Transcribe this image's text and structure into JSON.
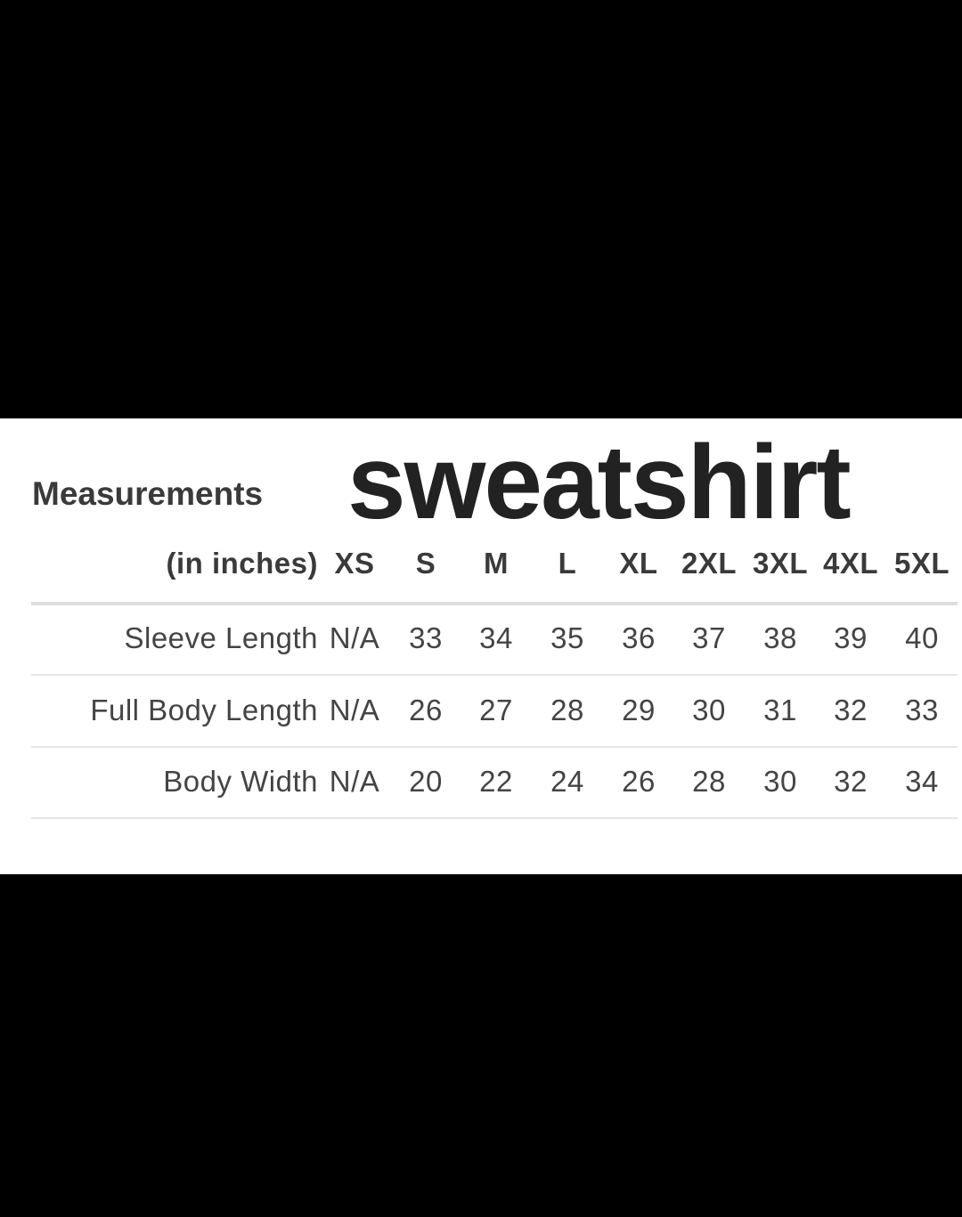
{
  "heading": "Measurements",
  "title": "sweatshirt",
  "table": {
    "unit_label": "(in inches)",
    "columns": [
      "XS",
      "S",
      "M",
      "L",
      "XL",
      "2XL",
      "3XL",
      "4XL",
      "5XL"
    ],
    "rows": [
      {
        "label": "Sleeve Length",
        "values": [
          "N/A",
          "33",
          "34",
          "35",
          "36",
          "37",
          "38",
          "39",
          "40"
        ]
      },
      {
        "label": "Full Body Length",
        "values": [
          "N/A",
          "26",
          "27",
          "28",
          "29",
          "30",
          "31",
          "32",
          "33"
        ]
      },
      {
        "label": "Body Width",
        "values": [
          "N/A",
          "20",
          "22",
          "24",
          "26",
          "28",
          "30",
          "32",
          "34"
        ]
      }
    ]
  }
}
